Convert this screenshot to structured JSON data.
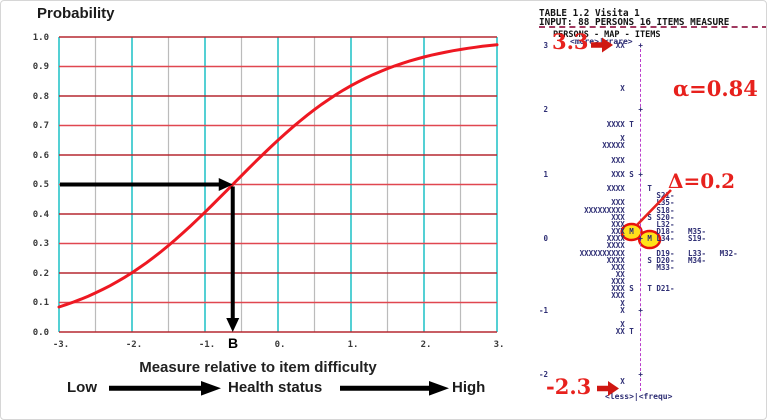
{
  "left_chart": {
    "title": "Probability",
    "xaxis_label": "Measure relative to item difficulty",
    "x_ticks": [
      "-3.",
      "-2.",
      "-1.",
      "0.",
      "1.",
      "2.",
      "3."
    ],
    "x_tick_values": [
      -3,
      -2,
      -1,
      0,
      1,
      2,
      3
    ],
    "y_ticks": [
      "1.0",
      "0.9",
      "0.8",
      "0.7",
      "0.6",
      "0.5",
      "0.4",
      "0.3",
      "0.2",
      "0.1",
      "0.0"
    ],
    "y_tick_values": [
      1.0,
      0.9,
      0.8,
      0.7,
      0.6,
      0.5,
      0.4,
      0.3,
      0.2,
      0.1,
      0.0
    ],
    "b_label": "B",
    "legend": {
      "low": "Low",
      "center": "Health status",
      "high": "High"
    },
    "colors": {
      "curve": "#ee1822",
      "hgrid_dark": "#b52830",
      "hgrid_light": "#e04750",
      "vgrid_major": "#29c5c9",
      "vgrid_minor": "#bbbbbb",
      "arrow": "#000000"
    }
  },
  "chart_data": [
    {
      "type": "line",
      "title": "Probability",
      "xlabel": "Measure relative to item difficulty",
      "x": [
        -3,
        -2.5,
        -2,
        -1.5,
        -1,
        -0.5,
        0,
        0.5,
        1,
        1.5,
        2,
        2.5,
        3
      ],
      "y": [
        0.085,
        0.132,
        0.201,
        0.293,
        0.406,
        0.53,
        0.65,
        0.754,
        0.835,
        0.893,
        0.932,
        0.958,
        0.974
      ],
      "xlim": [
        -3,
        3
      ],
      "ylim": [
        0,
        1
      ],
      "grid": true,
      "annotations": {
        "p_marked": 0.5,
        "item_difficulty_b": -0.62,
        "b_label": "B"
      }
    },
    {
      "type": "table",
      "title": "PERSONS - MAP - ITEMS",
      "person_measure_max": 3.3,
      "person_measure_min": -2.3,
      "cronbach_alpha": 0.84,
      "delta": 0.2,
      "items": [
        "S21",
        "L35",
        "S18",
        "S20",
        "L32",
        "D18",
        "M35",
        "L34",
        "S19",
        "D19",
        "L33",
        "M32",
        "D20",
        "M34",
        "M33",
        "D21"
      ]
    }
  ],
  "map": {
    "header_line1": "TABLE 1.2 Visita 1",
    "header_line2": "INPUT: 88 PERSONS  16 ITEMS  MEASURE",
    "map_title": "PERSONS - MAP - ITEMS",
    "top_scale_label": "<more>|<rare>",
    "bottom_scale_label": "<less>|<frequ>",
    "lines": [
      " 3               XX   +",
      "",
      "",
      "",
      "",
      "",
      "                  X",
      "",
      "",
      " 2                    +",
      "",
      "               XXXX T",
      "",
      "                  X",
      "              XXXXX",
      "",
      "                XXX",
      "",
      " 1              XXX S +",
      "",
      "               XXXX     T",
      "                          S21-",
      "                XXX       L35-",
      "          XXXXXXXXX       S18-",
      "                XXX     S S20-",
      "                XXX       L32-",
      "                XXX M     D18-   M35-",
      " 0             XXXX   + M L34-   S19-",
      "               XXXX",
      "         XXXXXXXXXX       D19-   L33-   M32-",
      "               XXXX     S D20-   M34-",
      "                XXX       M33-",
      "                 XX",
      "                XXX",
      "                XXX S   T D21-",
      "                XXX",
      "                  X",
      "-1                X   +",
      "",
      "                  X",
      "                 XX T",
      "",
      "",
      "",
      "",
      "",
      "-2                    +",
      "                  X"
    ],
    "annotations": {
      "person_max": "3.3",
      "alpha": "α=0.84",
      "delta": "Δ=0.2",
      "person_min": "-2.3"
    },
    "colors": {
      "map_text": "#2e2e74",
      "dashed_line": "#bb3ecc",
      "annotation_red": "#e7211d",
      "circle_fill": "#ffe21a",
      "circle_stroke": "#e7110d"
    }
  }
}
